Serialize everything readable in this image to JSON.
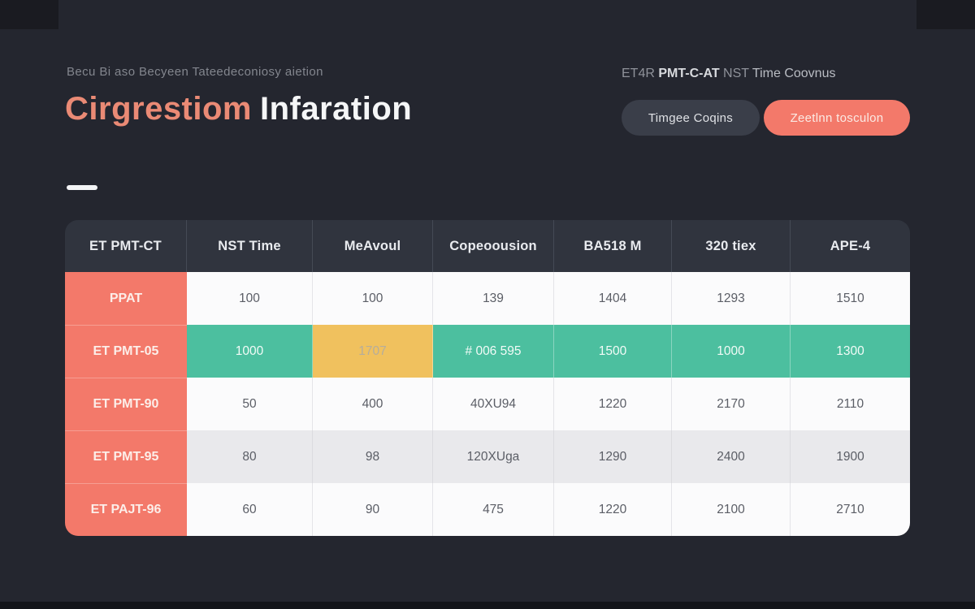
{
  "colors": {
    "background": "#24262F",
    "accent": "#F3796A",
    "title_accent": "#EA8A75",
    "teal": "#4CBF9F",
    "yellow": "#F0C15E",
    "header_bg": "#30343E",
    "row_white": "#FBFBFC",
    "row_alt": "#E9E9EC",
    "dark_button": "#3A3E49",
    "text_light": "#F5F6F7",
    "text_muted": "#83868E",
    "cell_text": "#5B5E66"
  },
  "header": {
    "subtitle": "Becu Bi aso Becyeen Tateedeconiosy aietion",
    "title_accent": "Cirgrestiom",
    "title_rest": "Infaration",
    "right_label": {
      "seg1": "ET4R ",
      "seg2": "PMT-C-AT ",
      "seg3": "NST ",
      "seg4": "Time Coovnus"
    },
    "buttons": {
      "secondary": "Timgee Coqins",
      "primary": "Zeetlnn tosculon"
    }
  },
  "table": {
    "headers": [
      "ET PMT-CT",
      "NST Time",
      "MeAvoul",
      "Copeoousion",
      "BA518 M",
      "320 tiex",
      "APE-4"
    ],
    "rows": [
      {
        "label": "PPAT",
        "values": [
          "100",
          "100",
          "139",
          "1404",
          "1293",
          "1510"
        ],
        "style": "plain",
        "cell_styles": [
          "",
          "",
          "",
          "",
          "",
          ""
        ]
      },
      {
        "label": "ET PMT-05",
        "values": [
          "1000",
          "1707",
          "# 006 595",
          "1500",
          "1000",
          "1300"
        ],
        "style": "highlight",
        "cell_styles": [
          "cell-teal",
          "cell-yellow",
          "cell-teal",
          "cell-teal",
          "cell-teal",
          "cell-teal"
        ]
      },
      {
        "label": "ET PMT-90",
        "values": [
          "50",
          "400",
          "40XU94",
          "1220",
          "2170",
          "2110"
        ],
        "style": "plain",
        "cell_styles": [
          "",
          "",
          "",
          "",
          "",
          ""
        ]
      },
      {
        "label": "ET PMT-95",
        "values": [
          "80",
          "98",
          "120XUga",
          "1290",
          "2400",
          "1900"
        ],
        "style": "alt",
        "cell_styles": [
          "",
          "",
          "",
          "",
          "",
          ""
        ]
      },
      {
        "label": "ET PAJT-96",
        "values": [
          "60",
          "90",
          "475",
          "1220",
          "2100",
          "2710"
        ],
        "style": "plain",
        "cell_styles": [
          "",
          "",
          "",
          "",
          "",
          ""
        ]
      }
    ]
  }
}
